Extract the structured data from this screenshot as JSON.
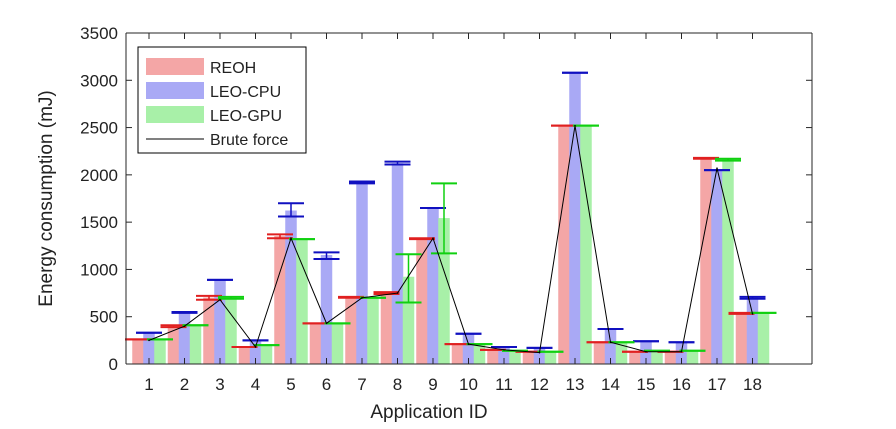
{
  "chart_data": {
    "type": "bar",
    "title": "",
    "xlabel": "Application ID",
    "ylabel": "Energy consumption (mJ)",
    "ylim": [
      0,
      3500
    ],
    "yticks": [
      0,
      500,
      1000,
      1500,
      2000,
      2500,
      3000,
      3500
    ],
    "categories": [
      "1",
      "2",
      "3",
      "4",
      "5",
      "6",
      "7",
      "8",
      "9",
      "10",
      "11",
      "12",
      "13",
      "14",
      "15",
      "16",
      "17",
      "18"
    ],
    "series": [
      {
        "name": "REOH",
        "color": "#f4a6a6",
        "edge_color": "#e02020",
        "values": [
          260,
          400,
          700,
          180,
          1350,
          430,
          700,
          750,
          1330,
          210,
          150,
          130,
          2520,
          230,
          130,
          130,
          2170,
          530
        ],
        "err_low": [
          260,
          390,
          680,
          180,
          1330,
          430,
          700,
          740,
          1320,
          210,
          150,
          130,
          2520,
          230,
          130,
          130,
          2170,
          530
        ],
        "err_high": [
          260,
          410,
          720,
          180,
          1370,
          430,
          710,
          760,
          1330,
          210,
          150,
          130,
          2520,
          230,
          130,
          130,
          2180,
          540
        ]
      },
      {
        "name": "LEO-CPU",
        "color": "#a9a9f5",
        "edge_color": "#1010c0",
        "values": [
          330,
          540,
          890,
          250,
          1620,
          1150,
          1920,
          2120,
          1640,
          320,
          180,
          170,
          3080,
          370,
          240,
          230,
          2050,
          700
        ],
        "err_low": [
          330,
          540,
          890,
          250,
          1560,
          1110,
          1910,
          2110,
          1650,
          320,
          180,
          170,
          3080,
          370,
          240,
          230,
          2050,
          690
        ],
        "err_high": [
          330,
          550,
          890,
          250,
          1700,
          1180,
          1930,
          2140,
          1650,
          320,
          180,
          170,
          3080,
          370,
          240,
          230,
          2050,
          710
        ]
      },
      {
        "name": "LEO-GPU",
        "color": "#a8f0a8",
        "edge_color": "#10d010",
        "values": [
          260,
          410,
          700,
          200,
          1320,
          430,
          700,
          920,
          1540,
          210,
          140,
          130,
          2520,
          230,
          140,
          140,
          2160,
          540
        ],
        "err_low": [
          260,
          410,
          690,
          200,
          1320,
          430,
          700,
          650,
          1170,
          210,
          140,
          130,
          2520,
          230,
          140,
          140,
          2150,
          540
        ],
        "err_high": [
          260,
          410,
          710,
          200,
          1320,
          430,
          700,
          1160,
          1910,
          210,
          140,
          130,
          2520,
          230,
          140,
          140,
          2170,
          540
        ]
      }
    ],
    "line": {
      "name": "Brute force",
      "color": "#000000",
      "values": [
        250,
        400,
        680,
        180,
        1330,
        430,
        700,
        750,
        1330,
        210,
        150,
        120,
        2520,
        230,
        130,
        130,
        2070,
        530
      ]
    },
    "legend_position": "top-left"
  }
}
